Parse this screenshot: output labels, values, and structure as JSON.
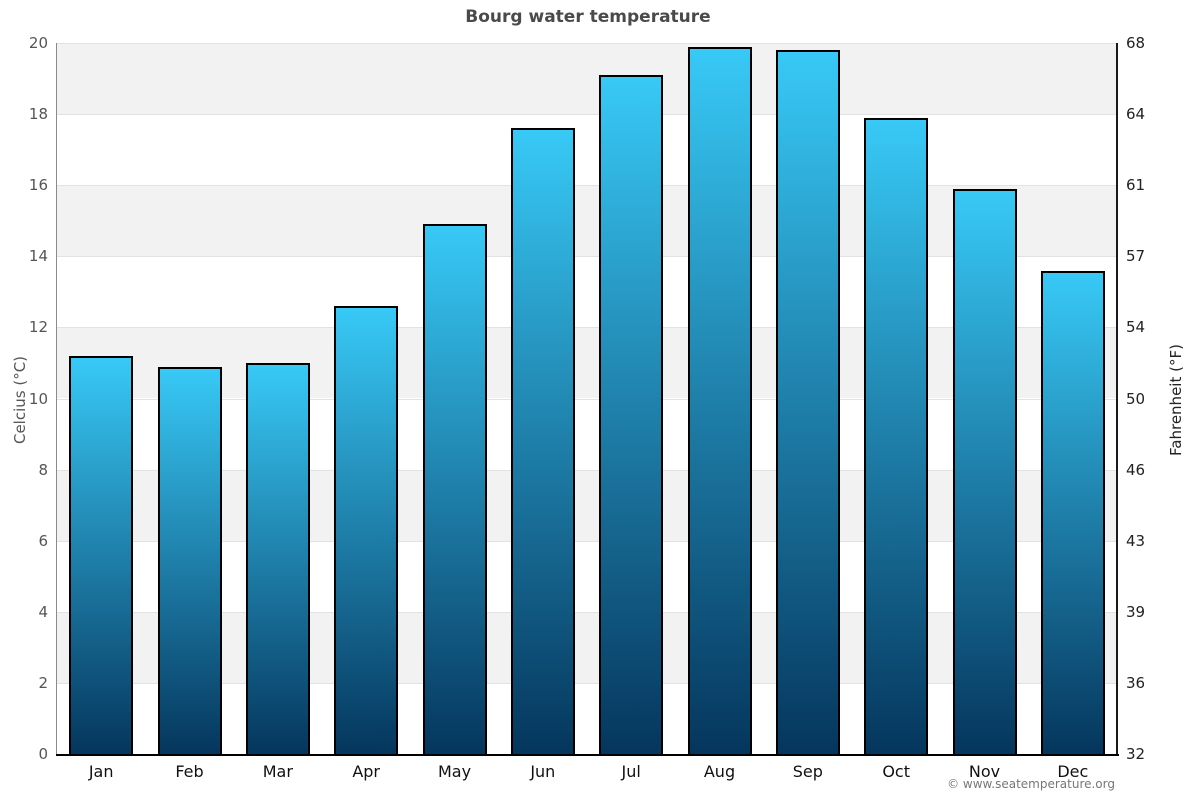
{
  "chart_data": {
    "type": "bar",
    "title": "Bourg water temperature",
    "categories": [
      "Jan",
      "Feb",
      "Mar",
      "Apr",
      "May",
      "Jun",
      "Jul",
      "Aug",
      "Sep",
      "Oct",
      "Nov",
      "Dec"
    ],
    "values": [
      11.2,
      10.9,
      11.0,
      12.6,
      14.9,
      17.6,
      19.1,
      19.9,
      19.8,
      17.9,
      15.9,
      13.6
    ],
    "series_name": "Water temperature",
    "ylabel_left": "Celcius (°C)",
    "ylabel_right": "Fahrenheit (°F)",
    "xlabel": "",
    "ylim_left": [
      0,
      20
    ],
    "ylim_right": [
      32,
      68
    ],
    "y_left_ticks": [
      20,
      18,
      16,
      14,
      12,
      10,
      8,
      6,
      4,
      2,
      0
    ],
    "y_right_ticks": [
      68,
      64,
      61,
      57,
      54,
      50,
      46,
      43,
      39,
      36,
      32
    ],
    "grid": "horizontal alternating bands, gray topmost",
    "legend": "none",
    "colors": {
      "bar_gradient_top": "#38c9f6",
      "bar_gradient_bottom": "#05365d",
      "bar_border": "#000000",
      "band_gray": "#f2f2f2",
      "band_white": "#ffffff",
      "gridline": "#e2e2e2",
      "title_text": "#4a4a4a",
      "left_tick_text": "#555555",
      "right_tick_text": "#222222"
    }
  },
  "footer": {
    "copyright": "© www.seatemperature.org"
  }
}
